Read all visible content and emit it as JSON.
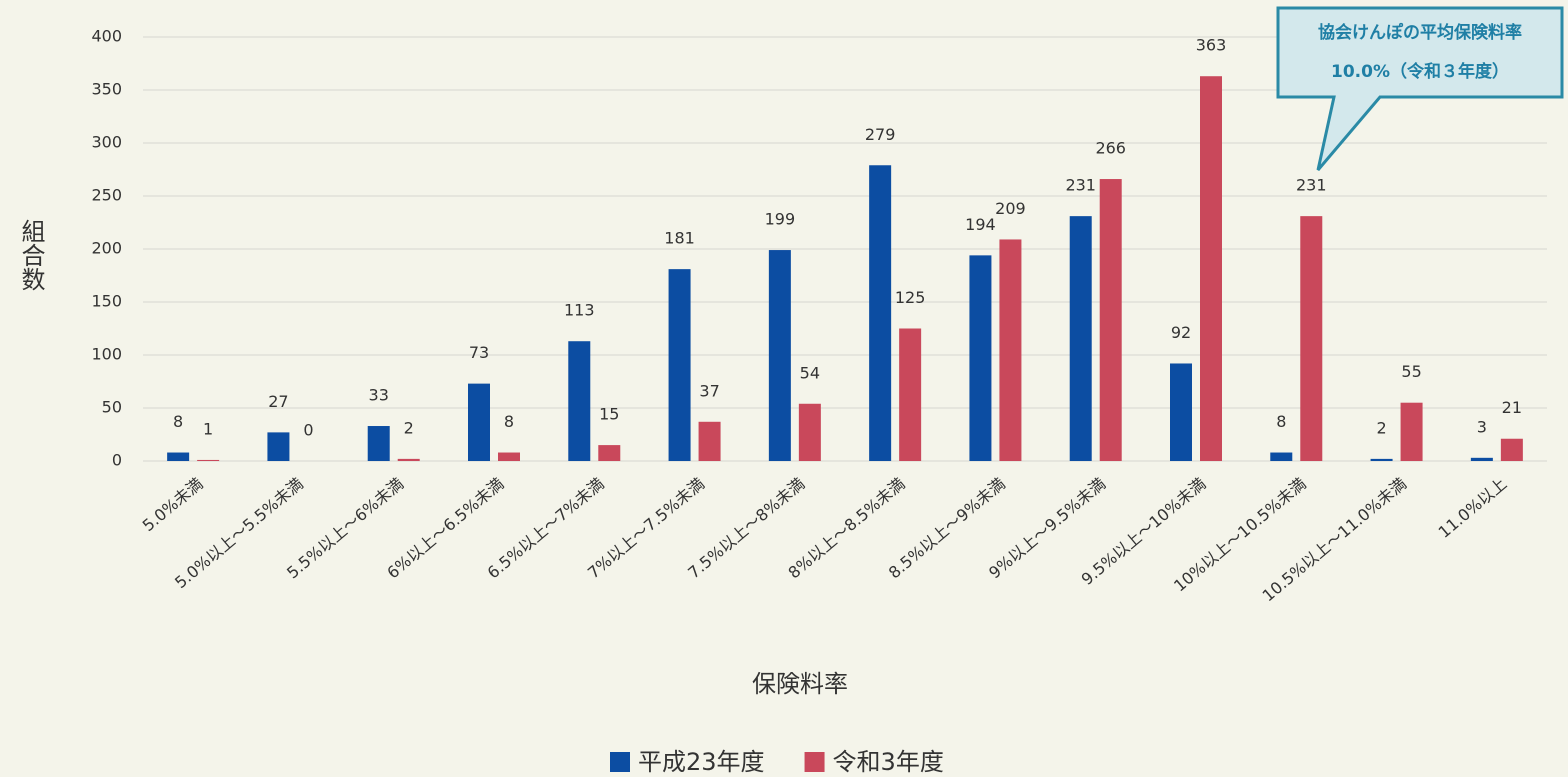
{
  "chart_data": {
    "type": "bar",
    "y_label": "組合数",
    "x_label": "保険料率",
    "annotation": [
      "協会けんぽの平均保険料率",
      "10.0%（令和３年度）"
    ],
    "categories": [
      "5.0%未満",
      "5.0%以上～5.5%未満",
      "5.5%以上～6%未満",
      "6%以上～6.5%未満",
      "6.5%以上～7%未満",
      "7%以上～7.5%未満",
      "7.5%以上～8%未満",
      "8%以上～8.5%未満",
      "8.5%以上～9%未満",
      "9%以上～9.5%未満",
      "9.5%以上～10%未満",
      "10%以上～10.5%未満",
      "10.5%以上～11.0%未満",
      "11.0%以上"
    ],
    "series": [
      {
        "name": "平成23年度",
        "color": "#0c4da2",
        "values": [
          8,
          27,
          33,
          73,
          113,
          181,
          199,
          279,
          194,
          231,
          92,
          8,
          2,
          3
        ]
      },
      {
        "name": "令和3年度",
        "color": "#c9485b",
        "values": [
          1,
          0,
          2,
          8,
          15,
          37,
          54,
          125,
          209,
          266,
          363,
          231,
          55,
          21
        ]
      }
    ],
    "ylim": [
      0,
      400
    ],
    "yticks": [
      0,
      50,
      100,
      150,
      200,
      250,
      300,
      350,
      400
    ],
    "grid": true
  }
}
